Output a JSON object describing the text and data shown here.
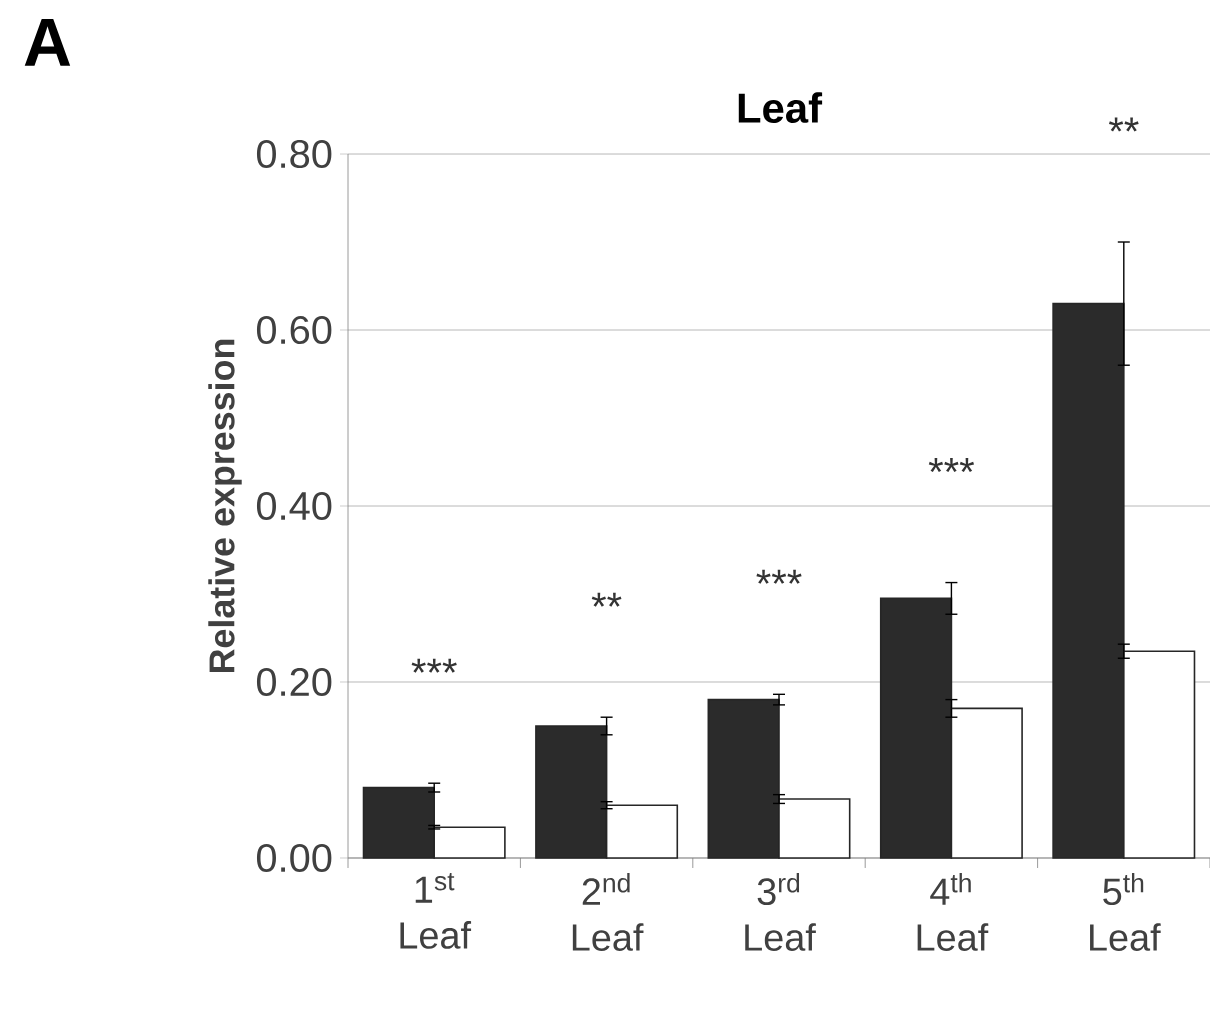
{
  "chart_data": {
    "type": "bar",
    "title": "Leaf",
    "ylabel": "Relative expression",
    "categories": [
      "1$^{st}$ Leaf",
      "2$^{nd}$ Leaf",
      "3$^{rd}$ Leaf",
      "4$^{th}$ Leaf",
      "5$^{th}$ Leaf"
    ],
    "series": [
      {
        "color": "#2b2b2b",
        "values": [
          0.08,
          0.15,
          0.18,
          0.295,
          0.63
        ],
        "errors": [
          0.005,
          0.01,
          0.006,
          0.018,
          0.07
        ]
      },
      {
        "color": "#ffffff",
        "values": [
          0.035,
          0.06,
          0.067,
          0.17,
          0.235
        ],
        "errors": [
          0.002,
          0.004,
          0.005,
          0.01,
          0.008
        ]
      }
    ],
    "ylim": [
      0,
      0.8
    ],
    "yticks": [
      {
        "value": 0,
        "label": "0.00"
      },
      {
        "value": 0.2,
        "label": "0.20"
      },
      {
        "value": 0.4,
        "label": "0.40"
      },
      {
        "value": 0.6,
        "label": "0.60"
      },
      {
        "value": 0.8,
        "label": "0.80"
      }
    ],
    "grid": "y",
    "annotations": [
      "A",
      "***",
      "**",
      "***",
      "***",
      "**"
    ]
  }
}
